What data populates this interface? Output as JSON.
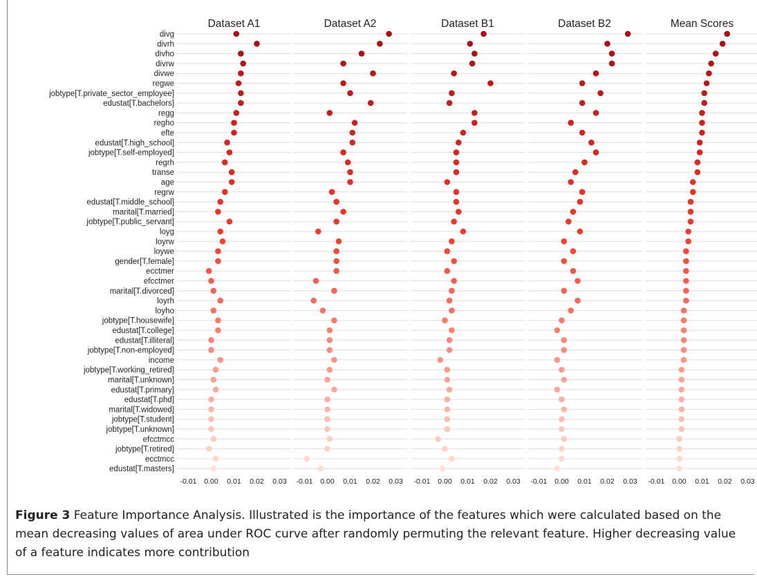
{
  "figure": {
    "label": "Figure 3",
    "caption": "Feature Importance Analysis. Illustrated is the importance of the features which were calculated based on the mean decreasing values of area under ROC curve after randomly permuting the relevant feature. Higher decreasing value of a feature indicates more contribution"
  },
  "chart_data": {
    "type": "scatter",
    "panels": [
      "Dataset A1",
      "Dataset A2",
      "Dataset B1",
      "Dataset B2",
      "Mean Scores"
    ],
    "features": [
      "divg",
      "divrh",
      "divho",
      "divrw",
      "divwe",
      "regwe",
      "jobtype[T.private_sector_employee]",
      "edustat[T.bachelors]",
      "regg",
      "regho",
      "efte",
      "edustat[T.high_school]",
      "jobtype[T.self-employed]",
      "regrh",
      "transe",
      "age",
      "regrw",
      "edustat[T.middle_school]",
      "marital[T.married]",
      "jobtype[T.public_servant]",
      "loyg",
      "loyrw",
      "loywe",
      "gender[T.female]",
      "ecctmer",
      "efcctmer",
      "marital[T.divorced]",
      "loyrh",
      "loyho",
      "jobtype[T.housewife]",
      "edustat[T.college]",
      "edustat[T.illiteral]",
      "jobtype[T.non-employed]",
      "income",
      "jobtype[T.working_retired]",
      "marital[T.unknown]",
      "edustat[T.primary]",
      "edustat[T.phd]",
      "marital[T.widowed]",
      "jobtype[T.student]",
      "jobtype[T.unknown]",
      "efcctmcc",
      "jobtype[T.retired]",
      "ecctmcc",
      "edustat[T.masters]"
    ],
    "series": [
      {
        "values": [
          0.011,
          0.02,
          0.013,
          0.014,
          0.013,
          0.012,
          0.013,
          0.013,
          0.011,
          0.01,
          0.01,
          0.007,
          0.008,
          0.006,
          0.009,
          0.009,
          0.006,
          0.004,
          0.003,
          0.008,
          0.004,
          0.005,
          0.003,
          0.003,
          -0.001,
          0.0,
          0.001,
          0.004,
          0.001,
          0.003,
          0.003,
          0.0,
          0.0,
          0.004,
          0.002,
          0.001,
          0.002,
          0.0,
          0.0,
          0.0,
          0.0,
          0.001,
          -0.001,
          0.002,
          0.001
        ]
      },
      {
        "values": [
          0.027,
          0.023,
          0.015,
          0.007,
          0.02,
          0.007,
          0.01,
          0.019,
          0.001,
          0.012,
          0.011,
          0.011,
          0.007,
          0.009,
          0.01,
          0.01,
          0.002,
          0.004,
          0.007,
          0.004,
          -0.004,
          0.005,
          0.004,
          0.004,
          0.004,
          -0.005,
          0.003,
          -0.006,
          -0.002,
          0.003,
          0.001,
          0.001,
          0.001,
          0.003,
          0.001,
          0.0,
          0.003,
          0.0,
          0.0,
          0.0,
          0.0,
          0.001,
          0.0,
          -0.009,
          -0.003
        ]
      },
      {
        "values": [
          0.017,
          0.011,
          0.013,
          0.012,
          0.004,
          0.02,
          0.003,
          0.002,
          0.013,
          0.013,
          0.008,
          0.006,
          0.005,
          0.005,
          0.005,
          0.001,
          0.005,
          0.005,
          0.006,
          0.004,
          0.008,
          0.003,
          0.001,
          0.004,
          0.001,
          0.004,
          0.003,
          0.002,
          0.003,
          0.0,
          0.003,
          0.002,
          0.002,
          -0.002,
          0.001,
          0.001,
          0.002,
          0.001,
          0.001,
          0.001,
          0.001,
          -0.003,
          0.0,
          0.003,
          -0.001
        ]
      },
      {
        "values": [
          0.029,
          0.02,
          0.022,
          0.022,
          0.015,
          0.009,
          0.017,
          0.009,
          0.015,
          0.004,
          0.009,
          0.013,
          0.015,
          0.01,
          0.006,
          0.004,
          0.009,
          0.008,
          0.005,
          0.003,
          0.008,
          0.001,
          0.005,
          0.001,
          0.005,
          0.007,
          0.001,
          0.007,
          0.004,
          0.0,
          -0.002,
          0.001,
          0.001,
          -0.002,
          0.0,
          0.001,
          -0.002,
          0.0,
          0.001,
          0.0,
          0.0,
          0.001,
          0.0,
          0.0,
          -0.002
        ]
      },
      {
        "values": [
          0.021,
          0.019,
          0.016,
          0.014,
          0.013,
          0.012,
          0.011,
          0.011,
          0.01,
          0.01,
          0.01,
          0.009,
          0.009,
          0.008,
          0.008,
          0.006,
          0.006,
          0.005,
          0.005,
          0.005,
          0.004,
          0.004,
          0.003,
          0.003,
          0.003,
          0.003,
          0.003,
          0.003,
          0.002,
          0.002,
          0.002,
          0.002,
          0.002,
          0.002,
          0.001,
          0.001,
          0.001,
          0.001,
          0.001,
          0.001,
          0.001,
          0.0,
          0.0,
          0.0,
          0.0
        ]
      }
    ],
    "xlim": [
      -0.015,
      0.035
    ],
    "xticks": [
      -0.01,
      0.0,
      0.01,
      0.02,
      0.03
    ],
    "xtick_labels": [
      "-0.01",
      "0.00",
      "0.01",
      "0.02",
      "0.03"
    ],
    "grid": "horizontal",
    "colors": {
      "high": "#a50f15",
      "low": "#fee0d2",
      "grid": "#dddddd",
      "text": "#222222"
    }
  }
}
